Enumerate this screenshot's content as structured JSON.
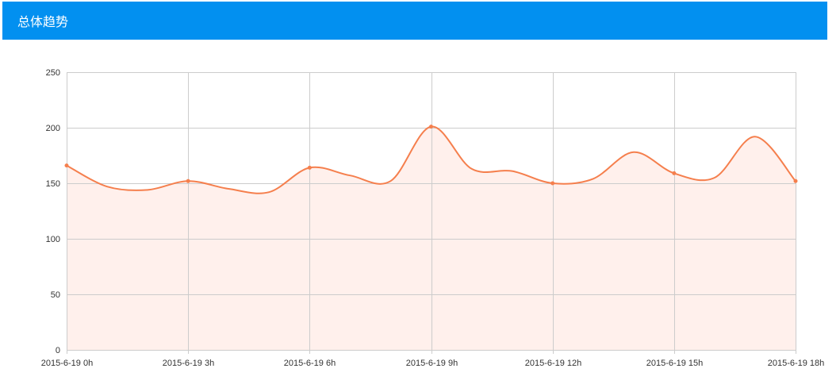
{
  "header": {
    "title": "总体趋势"
  },
  "colors": {
    "header_bg": "#0290f0",
    "series_line": "#f57f4d",
    "series_fill": "#fff0ec",
    "grid": "#cccccc",
    "axis_text": "#333333"
  },
  "chart_data": {
    "type": "area",
    "title": "",
    "xlabel": "",
    "ylabel": "",
    "ylim": [
      0,
      250
    ],
    "yticks": [
      0,
      50,
      100,
      150,
      200,
      250
    ],
    "grid": true,
    "smooth": true,
    "x_tick_labels": [
      "2015-6-19 0h",
      "2015-6-19 3h",
      "2015-6-19 6h",
      "2015-6-19 9h",
      "2015-6-19 12h",
      "2015-6-19 15h",
      "2015-6-19 18h"
    ],
    "x": [
      0,
      1,
      2,
      3,
      4,
      5,
      6,
      7,
      8,
      9,
      10,
      11,
      12,
      13,
      14,
      15,
      16,
      17,
      18
    ],
    "series": [
      {
        "values": [
          166,
          147,
          144,
          152,
          145,
          142,
          164,
          157,
          152,
          201,
          163,
          161,
          150,
          154,
          178,
          159,
          155,
          192,
          152
        ]
      }
    ]
  }
}
